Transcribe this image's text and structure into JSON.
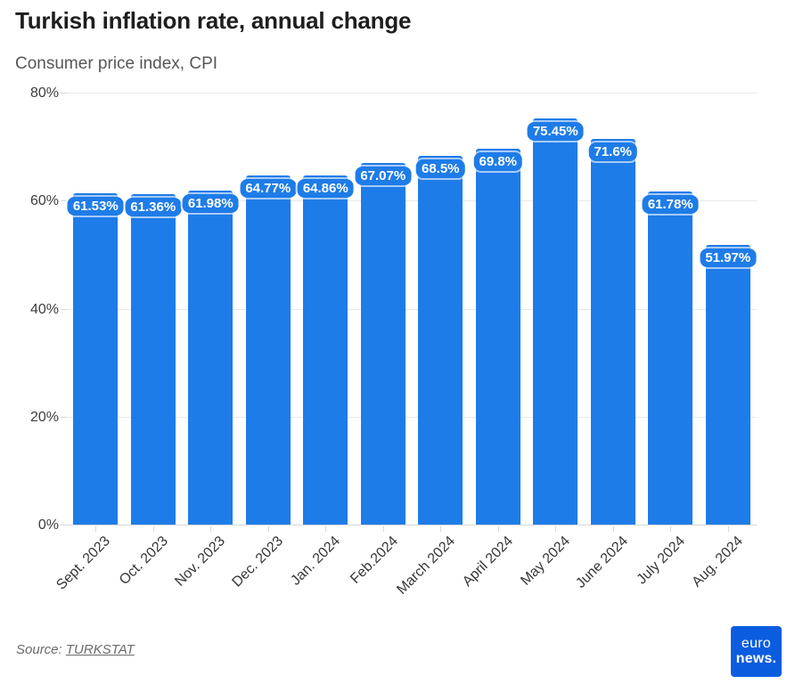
{
  "header": {
    "title": "Turkish inflation rate, annual change",
    "subtitle": "Consumer price index, CPI"
  },
  "chart_data": {
    "type": "bar",
    "title": "Turkish inflation rate, annual change",
    "subtitle": "Consumer price index, CPI",
    "categories": [
      "Sept. 2023",
      "Oct. 2023",
      "Nov. 2023",
      "Dec. 2023",
      "Jan. 2024",
      "Feb.2024",
      "March 2024",
      "April 2024",
      "May 2024",
      "June 2024",
      "July 2024",
      "Aug. 2024"
    ],
    "values": [
      61.53,
      61.36,
      61.98,
      64.77,
      64.86,
      67.07,
      68.5,
      69.8,
      75.45,
      71.6,
      61.78,
      51.97
    ],
    "bar_labels": [
      "61.53%",
      "61.36%",
      "61.98%",
      "64.77%",
      "64.86%",
      "67.07%",
      "68.5%",
      "69.8%",
      "75.45%",
      "71.6%",
      "61.78%",
      "51.97%"
    ],
    "xlabel": "",
    "ylabel": "",
    "ylim": [
      0,
      80
    ],
    "yticks": [
      0,
      20,
      40,
      60,
      80
    ],
    "ytick_labels": [
      "0%",
      "20%",
      "40%",
      "60%",
      "80%"
    ],
    "grid": true,
    "legend": false,
    "bar_color": "#1e7ce8",
    "bar_label_text_color": "#ffffff"
  },
  "footer": {
    "source_prefix": "Source: ",
    "source_link": "TURKSTAT",
    "logo": {
      "line1": "euro",
      "line2": "news.",
      "bg_color": "#0c5ce0",
      "text_color": "#ffffff"
    }
  }
}
